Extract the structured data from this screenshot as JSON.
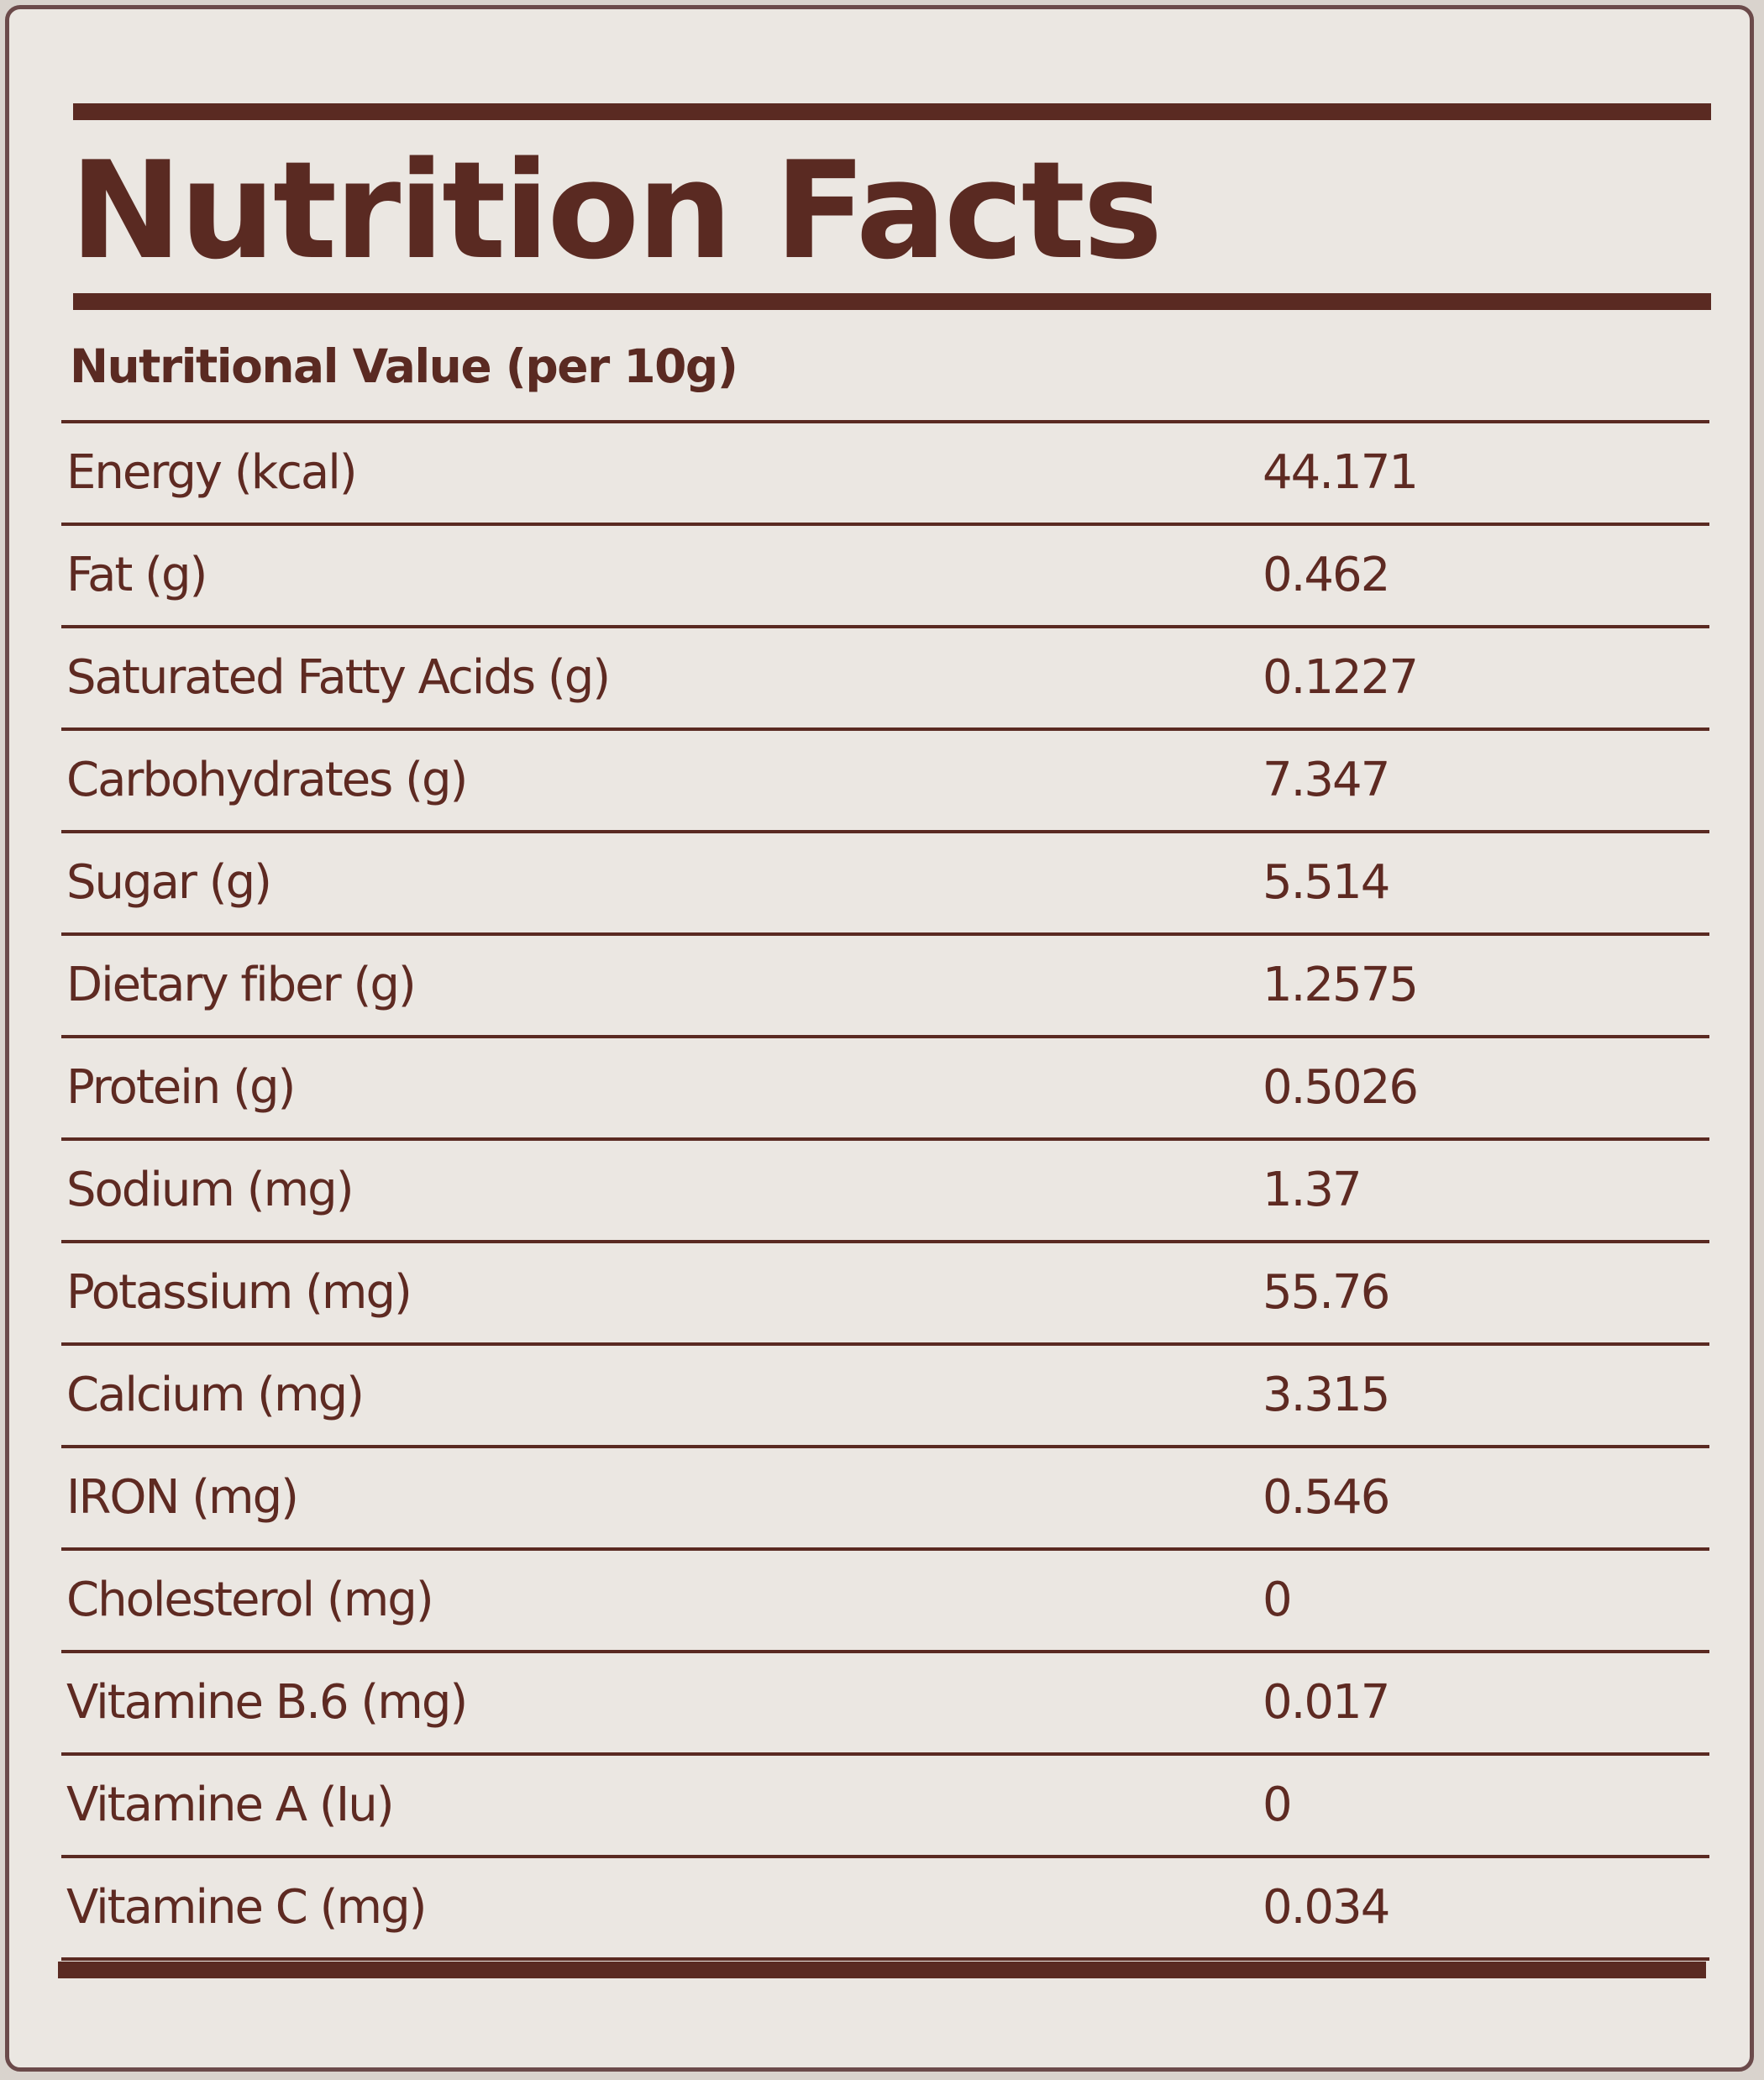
{
  "label": {
    "title": "Nutrition Facts",
    "subtitle": "Nutritional Value (per 10g)",
    "rows": [
      {
        "name": "Energy (kcal)",
        "value": "44.171"
      },
      {
        "name": "Fat (g)",
        "value": "0.462"
      },
      {
        "name": "Saturated Fatty Acids (g)",
        "value": "0.1227"
      },
      {
        "name": "Carbohydrates (g)",
        "value": "7.347"
      },
      {
        "name": "Sugar (g)",
        "value": "5.514"
      },
      {
        "name": "Dietary fiber (g)",
        "value": "1.2575"
      },
      {
        "name": "Protein (g)",
        "value": "0.5026"
      },
      {
        "name": "Sodium (mg)",
        "value": "1.37"
      },
      {
        "name": "Potassium (mg)",
        "value": "55.76"
      },
      {
        "name": "Calcium (mg)",
        "value": "3.315"
      },
      {
        "name": "IRON (mg)",
        "value": "0.546"
      },
      {
        "name": "Cholesterol (mg)",
        "value": "0"
      },
      {
        "name": "Vitamine B.6 (mg)",
        "value": "0.017"
      },
      {
        "name": "Vitamine A (Iu)",
        "value": "0"
      },
      {
        "name": "Vitamine C (mg)",
        "value": "0.034"
      }
    ]
  },
  "colors": {
    "ink": "#5a2a22",
    "paper": "#ebe7e2",
    "border": "#6b4a4a"
  }
}
